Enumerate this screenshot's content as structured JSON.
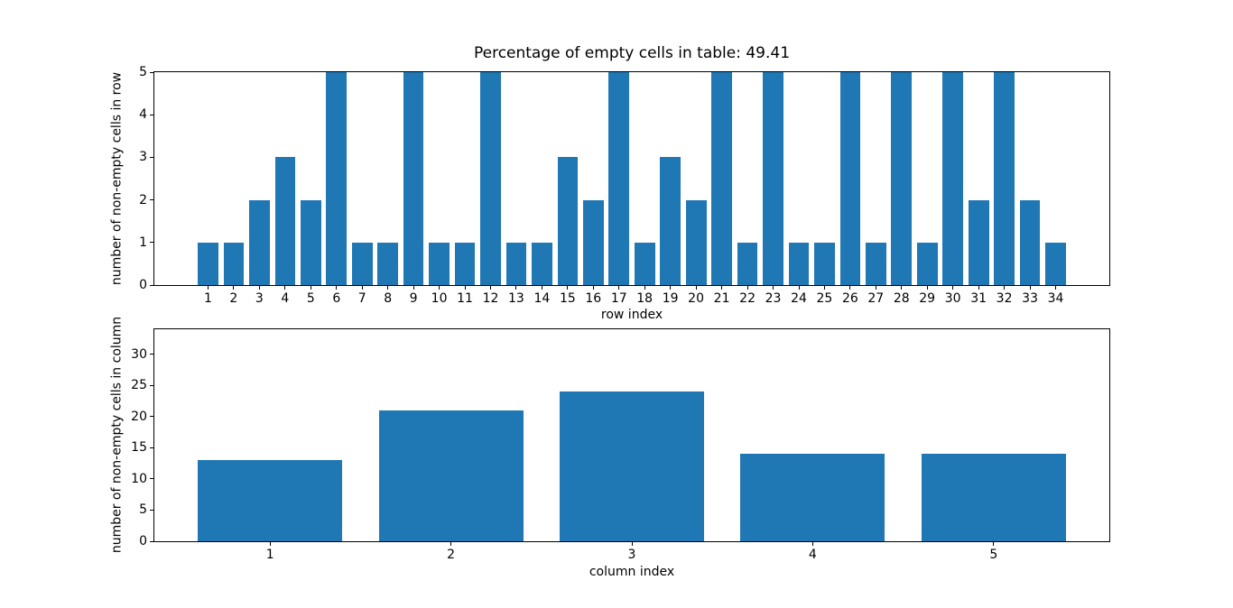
{
  "figure": {
    "background": "#ffffff",
    "spine_color": "#000000",
    "text_color": "#000000"
  },
  "chart_data": [
    {
      "type": "bar",
      "title": "Percentage of empty cells in table: 49.41",
      "xlabel": "row index",
      "ylabel": "number of non-empty cells in row",
      "categories": [
        1,
        2,
        3,
        4,
        5,
        6,
        7,
        8,
        9,
        10,
        11,
        12,
        13,
        14,
        15,
        16,
        17,
        18,
        19,
        20,
        21,
        22,
        23,
        24,
        25,
        26,
        27,
        28,
        29,
        30,
        31,
        32,
        33,
        34
      ],
      "values": [
        1,
        1,
        2,
        3,
        2,
        5,
        1,
        1,
        5,
        1,
        1,
        5,
        1,
        1,
        3,
        2,
        5,
        1,
        3,
        2,
        5,
        1,
        5,
        1,
        1,
        5,
        1,
        5,
        1,
        5,
        2,
        5,
        2,
        1
      ],
      "ylim": [
        0,
        5
      ],
      "yticks": [
        0,
        1,
        2,
        3,
        4,
        5
      ],
      "bar_color": "#1f77b4",
      "bar_width": 0.8,
      "grid": false,
      "legend": null
    },
    {
      "type": "bar",
      "title": "",
      "xlabel": "column index",
      "ylabel": "number of non-empty cells in column",
      "categories": [
        1,
        2,
        3,
        4,
        5
      ],
      "values": [
        13,
        21,
        24,
        14,
        14
      ],
      "ylim": [
        0,
        34
      ],
      "yticks": [
        0,
        5,
        10,
        15,
        20,
        25,
        30
      ],
      "bar_color": "#1f77b4",
      "bar_width": 0.8,
      "grid": false,
      "legend": null
    }
  ]
}
